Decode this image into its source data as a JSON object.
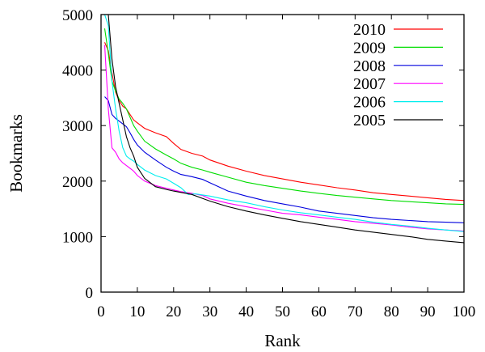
{
  "chart_data": {
    "type": "line",
    "title": "",
    "xlabel": "Rank",
    "ylabel": "Bookmarks",
    "xlim": [
      0,
      100
    ],
    "ylim": [
      0,
      5000
    ],
    "x_ticks": [
      0,
      10,
      20,
      30,
      40,
      50,
      60,
      70,
      80,
      90,
      100
    ],
    "y_ticks": [
      0,
      1000,
      2000,
      3000,
      4000,
      5000
    ],
    "grid": false,
    "legend_position": "top-right",
    "series": [
      {
        "name": "2010",
        "color": "#ff0000",
        "points": [
          [
            1,
            4500
          ],
          [
            2,
            4350
          ],
          [
            3,
            3950
          ],
          [
            4,
            3600
          ],
          [
            5,
            3450
          ],
          [
            6,
            3350
          ],
          [
            7,
            3300
          ],
          [
            8,
            3200
          ],
          [
            9,
            3100
          ],
          [
            10,
            3050
          ],
          [
            12,
            2950
          ],
          [
            15,
            2870
          ],
          [
            18,
            2800
          ],
          [
            20,
            2680
          ],
          [
            22,
            2570
          ],
          [
            25,
            2500
          ],
          [
            28,
            2450
          ],
          [
            30,
            2380
          ],
          [
            35,
            2270
          ],
          [
            40,
            2180
          ],
          [
            45,
            2100
          ],
          [
            50,
            2040
          ],
          [
            55,
            1980
          ],
          [
            60,
            1930
          ],
          [
            65,
            1880
          ],
          [
            70,
            1840
          ],
          [
            75,
            1790
          ],
          [
            80,
            1760
          ],
          [
            85,
            1730
          ],
          [
            90,
            1700
          ],
          [
            95,
            1670
          ],
          [
            100,
            1650
          ]
        ]
      },
      {
        "name": "2009",
        "color": "#00dd00",
        "points": [
          [
            1,
            4750
          ],
          [
            2,
            4300
          ],
          [
            3,
            3800
          ],
          [
            4,
            3620
          ],
          [
            5,
            3480
          ],
          [
            6,
            3400
          ],
          [
            7,
            3300
          ],
          [
            8,
            3150
          ],
          [
            9,
            3000
          ],
          [
            10,
            2900
          ],
          [
            12,
            2720
          ],
          [
            15,
            2580
          ],
          [
            18,
            2470
          ],
          [
            20,
            2400
          ],
          [
            22,
            2320
          ],
          [
            25,
            2250
          ],
          [
            28,
            2200
          ],
          [
            30,
            2160
          ],
          [
            35,
            2070
          ],
          [
            40,
            1980
          ],
          [
            45,
            1920
          ],
          [
            50,
            1870
          ],
          [
            55,
            1820
          ],
          [
            60,
            1780
          ],
          [
            65,
            1740
          ],
          [
            70,
            1710
          ],
          [
            75,
            1680
          ],
          [
            80,
            1650
          ],
          [
            85,
            1630
          ],
          [
            90,
            1610
          ],
          [
            95,
            1590
          ],
          [
            100,
            1580
          ]
        ]
      },
      {
        "name": "2008",
        "color": "#0000dd",
        "points": [
          [
            1,
            3520
          ],
          [
            2,
            3450
          ],
          [
            3,
            3200
          ],
          [
            4,
            3130
          ],
          [
            5,
            3080
          ],
          [
            6,
            3030
          ],
          [
            7,
            2980
          ],
          [
            8,
            2870
          ],
          [
            9,
            2750
          ],
          [
            10,
            2650
          ],
          [
            12,
            2520
          ],
          [
            15,
            2380
          ],
          [
            18,
            2250
          ],
          [
            20,
            2180
          ],
          [
            22,
            2120
          ],
          [
            25,
            2080
          ],
          [
            28,
            2030
          ],
          [
            30,
            1970
          ],
          [
            35,
            1820
          ],
          [
            40,
            1730
          ],
          [
            45,
            1650
          ],
          [
            50,
            1590
          ],
          [
            55,
            1530
          ],
          [
            60,
            1460
          ],
          [
            65,
            1420
          ],
          [
            70,
            1380
          ],
          [
            75,
            1340
          ],
          [
            80,
            1310
          ],
          [
            85,
            1290
          ],
          [
            90,
            1270
          ],
          [
            95,
            1260
          ],
          [
            100,
            1250
          ]
        ]
      },
      {
        "name": "2007",
        "color": "#ff00ff",
        "points": [
          [
            1,
            4450
          ],
          [
            2,
            3300
          ],
          [
            3,
            2600
          ],
          [
            4,
            2520
          ],
          [
            5,
            2400
          ],
          [
            6,
            2330
          ],
          [
            7,
            2280
          ],
          [
            8,
            2230
          ],
          [
            9,
            2180
          ],
          [
            10,
            2100
          ],
          [
            12,
            2000
          ],
          [
            15,
            1920
          ],
          [
            18,
            1870
          ],
          [
            20,
            1840
          ],
          [
            22,
            1810
          ],
          [
            25,
            1780
          ],
          [
            28,
            1740
          ],
          [
            30,
            1680
          ],
          [
            35,
            1600
          ],
          [
            40,
            1540
          ],
          [
            45,
            1480
          ],
          [
            50,
            1420
          ],
          [
            55,
            1390
          ],
          [
            60,
            1350
          ],
          [
            65,
            1310
          ],
          [
            70,
            1270
          ],
          [
            75,
            1240
          ],
          [
            80,
            1210
          ],
          [
            85,
            1170
          ],
          [
            90,
            1140
          ],
          [
            95,
            1120
          ],
          [
            100,
            1100
          ]
        ]
      },
      {
        "name": "2006",
        "color": "#00eeee",
        "points": [
          [
            1,
            5000
          ],
          [
            2,
            4800
          ],
          [
            3,
            3800
          ],
          [
            4,
            3300
          ],
          [
            5,
            2900
          ],
          [
            6,
            2600
          ],
          [
            7,
            2450
          ],
          [
            8,
            2400
          ],
          [
            9,
            2360
          ],
          [
            10,
            2300
          ],
          [
            12,
            2200
          ],
          [
            15,
            2100
          ],
          [
            18,
            2040
          ],
          [
            20,
            1960
          ],
          [
            22,
            1880
          ],
          [
            24,
            1760
          ],
          [
            26,
            1770
          ],
          [
            30,
            1730
          ],
          [
            35,
            1660
          ],
          [
            40,
            1610
          ],
          [
            45,
            1540
          ],
          [
            50,
            1480
          ],
          [
            55,
            1430
          ],
          [
            60,
            1390
          ],
          [
            65,
            1350
          ],
          [
            70,
            1310
          ],
          [
            75,
            1260
          ],
          [
            80,
            1220
          ],
          [
            85,
            1190
          ],
          [
            90,
            1150
          ],
          [
            95,
            1120
          ],
          [
            100,
            1090
          ]
        ]
      },
      {
        "name": "2005",
        "color": "#000000",
        "points": [
          [
            2,
            5000
          ],
          [
            3,
            4200
          ],
          [
            4,
            3700
          ],
          [
            5,
            3400
          ],
          [
            6,
            3100
          ],
          [
            7,
            2800
          ],
          [
            8,
            2600
          ],
          [
            9,
            2450
          ],
          [
            10,
            2250
          ],
          [
            12,
            2050
          ],
          [
            15,
            1900
          ],
          [
            18,
            1850
          ],
          [
            20,
            1820
          ],
          [
            25,
            1760
          ],
          [
            30,
            1640
          ],
          [
            35,
            1540
          ],
          [
            40,
            1460
          ],
          [
            45,
            1390
          ],
          [
            50,
            1330
          ],
          [
            55,
            1270
          ],
          [
            60,
            1220
          ],
          [
            65,
            1170
          ],
          [
            70,
            1120
          ],
          [
            75,
            1080
          ],
          [
            80,
            1040
          ],
          [
            85,
            1000
          ],
          [
            90,
            950
          ],
          [
            95,
            920
          ],
          [
            100,
            890
          ]
        ]
      }
    ]
  }
}
